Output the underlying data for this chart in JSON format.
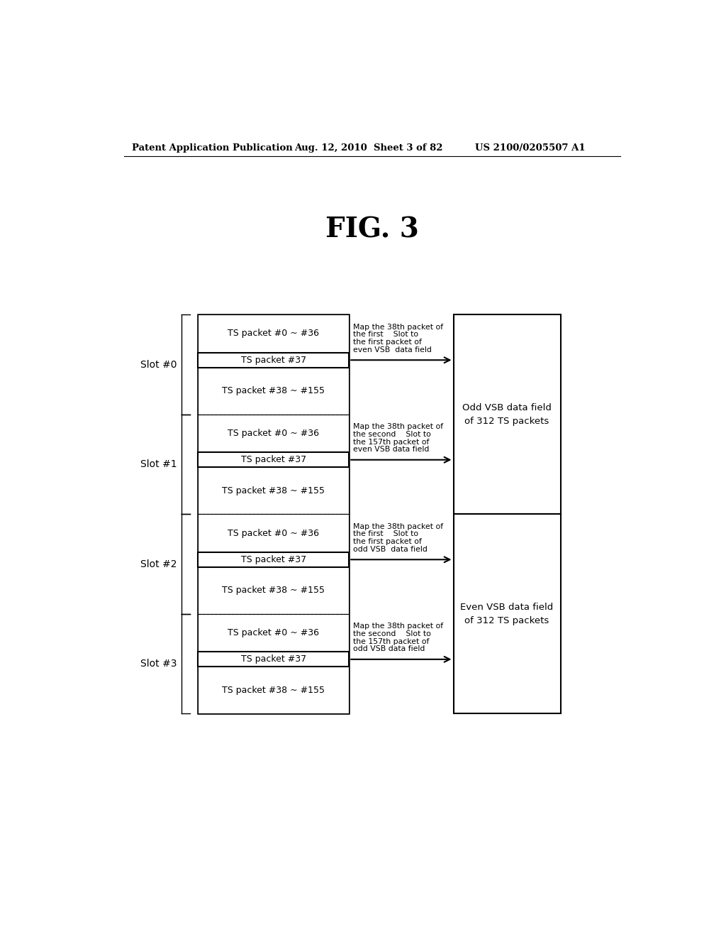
{
  "title": "FIG. 3",
  "header_left": "Patent Application Publication",
  "header_mid": "Aug. 12, 2010  Sheet 3 of 82",
  "header_right": "US 2100/0205507 A1",
  "slots": [
    "Slot #0",
    "Slot #1",
    "Slot #2",
    "Slot #3"
  ],
  "row1": "TS packet #0 ~ #36",
  "row2": "TS packet #37",
  "row3": "TS packet #38 ~ #155",
  "annotations": [
    [
      "Map the 38th packet of",
      "the first    Slot to",
      "the first packet of",
      "even VSB  data field"
    ],
    [
      "Map the 38th packet of",
      "the second    Slot to",
      "the 157th packet of",
      "even VSB data field"
    ],
    [
      "Map the 38th packet of",
      "the first    Slot to",
      "the first packet of",
      "odd VSB  data field"
    ],
    [
      "Map the 38th packet of",
      "the second    Slot to",
      "the 157th packet of",
      "odd VSB data field"
    ]
  ],
  "right_box1_line1": "Odd VSB data field",
  "right_box1_line2": "of 312 TS packets",
  "right_box2_line1": "Even VSB data field",
  "right_box2_line2": "of 312 TS packets",
  "bg_color": "#ffffff",
  "text_color": "#000000"
}
